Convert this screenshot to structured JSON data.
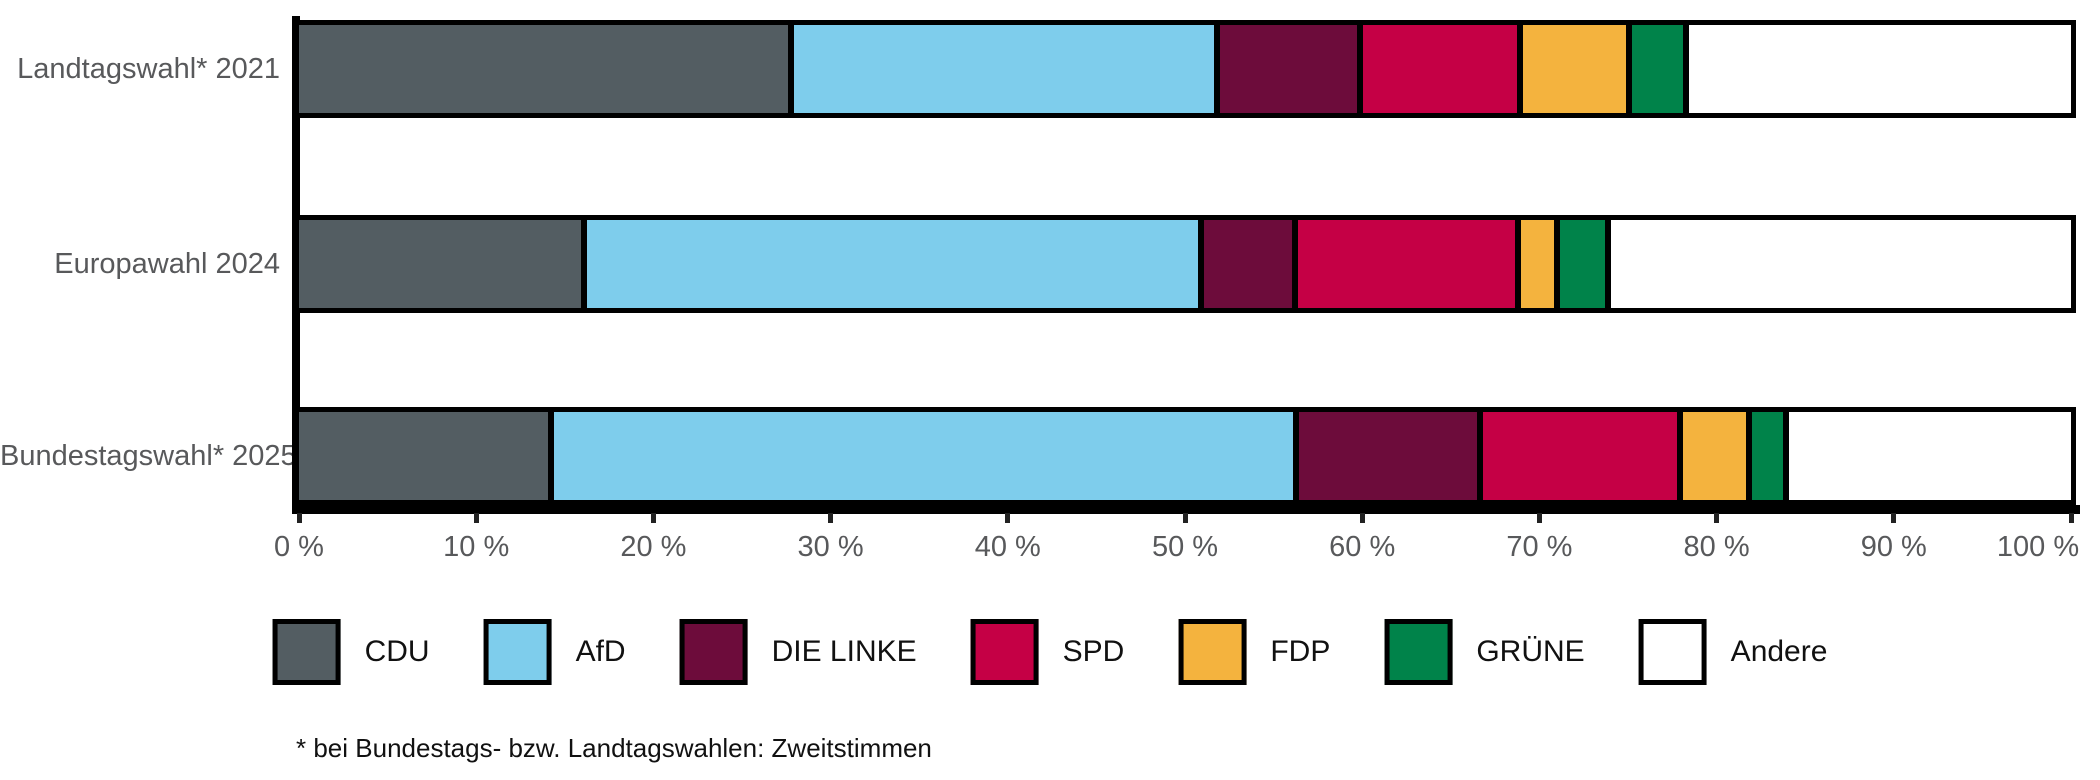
{
  "chart_data": {
    "type": "bar",
    "variant": "horizontal-stacked-100",
    "title": "",
    "categories": [
      "Landtagswahl* 2021",
      "Europawahl 2024",
      "Bundestagswahl* 2025"
    ],
    "series": [
      {
        "name": "CDU",
        "color": "#535d62",
        "values": [
          27.9,
          16.2,
          14.3
        ]
      },
      {
        "name": "AfD",
        "color": "#7ecdec",
        "values": [
          24.2,
          35.0,
          42.3
        ]
      },
      {
        "name": "DIE LINKE",
        "color": "#6d0c3b",
        "values": [
          8.1,
          5.3,
          10.4
        ]
      },
      {
        "name": "SPD",
        "color": "#c50045",
        "values": [
          9.1,
          12.7,
          11.4
        ]
      },
      {
        "name": "FDP",
        "color": "#f4b33e",
        "values": [
          6.2,
          2.2,
          3.9
        ]
      },
      {
        "name": "GRÜNE",
        "color": "#00834a",
        "values": [
          3.2,
          2.9,
          2.1
        ]
      },
      {
        "name": "Andere",
        "color": "#ffffff",
        "values": [
          21.3,
          25.7,
          15.6
        ]
      }
    ],
    "x_axis": {
      "min": 0,
      "max": 100,
      "tick_step": 10,
      "tick_labels": [
        "0 %",
        "10 %",
        "20 %",
        "30 %",
        "40 %",
        "50 %",
        "60 %",
        "70 %",
        "80 %",
        "90 %",
        "100 %"
      ]
    },
    "legend": [
      "CDU",
      "AfD",
      "DIE LINKE",
      "SPD",
      "FDP",
      "GRÜNE",
      "Andere"
    ],
    "legend_position": "bottom-center",
    "grid": false,
    "bar_border_color": "#000000",
    "footnote": "* bei Bundestags- bzw. Landtagswahlen: Zweitstimmen"
  }
}
